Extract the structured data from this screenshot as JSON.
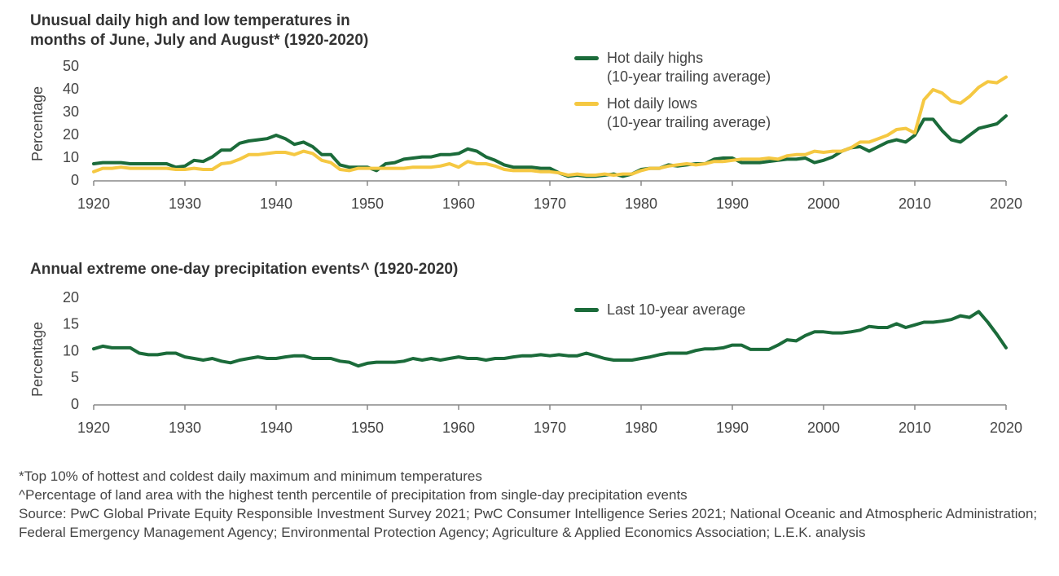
{
  "chart_data": [
    {
      "type": "line",
      "title": "Unusual daily high and low temperatures in\nmonths of June, July and August* (1920-2020)",
      "y_label": "Percentage",
      "x": [
        1920,
        1921,
        1922,
        1923,
        1924,
        1925,
        1926,
        1927,
        1928,
        1929,
        1930,
        1931,
        1932,
        1933,
        1934,
        1935,
        1936,
        1937,
        1938,
        1939,
        1940,
        1941,
        1942,
        1943,
        1944,
        1945,
        1946,
        1947,
        1948,
        1949,
        1950,
        1951,
        1952,
        1953,
        1954,
        1955,
        1956,
        1957,
        1958,
        1959,
        1960,
        1961,
        1962,
        1963,
        1964,
        1965,
        1966,
        1967,
        1968,
        1969,
        1970,
        1971,
        1972,
        1973,
        1974,
        1975,
        1976,
        1977,
        1978,
        1979,
        1980,
        1981,
        1982,
        1983,
        1984,
        1985,
        1986,
        1987,
        1988,
        1989,
        1990,
        1991,
        1992,
        1993,
        1994,
        1995,
        1996,
        1997,
        1998,
        1999,
        2000,
        2001,
        2002,
        2003,
        2004,
        2005,
        2006,
        2007,
        2008,
        2009,
        2010,
        2011,
        2012,
        2013,
        2014,
        2015,
        2016,
        2017,
        2018,
        2019,
        2020
      ],
      "series": [
        {
          "name": "Hot daily highs\n(10-year trailing average)",
          "color": "#1b6b3a",
          "values": [
            7.5,
            8,
            8,
            8,
            7.5,
            7.5,
            7.5,
            7.5,
            7.5,
            6,
            6.5,
            9,
            8.5,
            10.5,
            13.5,
            13.5,
            16.5,
            17.5,
            18,
            18.5,
            20,
            18.5,
            16,
            17,
            15,
            11.5,
            11.5,
            7,
            6,
            6,
            6,
            4.5,
            7.5,
            8,
            9.5,
            10,
            10.5,
            10.5,
            11.5,
            11.5,
            12,
            14,
            13,
            10.5,
            9,
            7,
            6,
            6,
            6,
            5.5,
            5.5,
            3.5,
            2,
            2.5,
            2,
            2,
            2.5,
            3,
            2,
            3,
            5,
            5.5,
            5.5,
            7,
            6.5,
            7,
            7.5,
            7.5,
            9.5,
            10,
            10,
            8,
            8,
            8,
            8.5,
            9,
            9.5,
            9.5,
            10,
            8,
            9,
            10.5,
            13,
            14.5,
            15,
            13,
            15,
            17,
            18,
            17,
            20,
            27,
            27,
            22,
            18,
            17,
            20,
            23,
            24,
            25,
            28.5
          ]
        },
        {
          "name": "Hot daily lows\n(10-year trailing average)",
          "color": "#f5c842",
          "values": [
            4,
            5.5,
            5.5,
            6,
            5.5,
            5.5,
            5.5,
            5.5,
            5.5,
            5,
            5,
            5.5,
            5,
            5,
            7.5,
            8,
            9.5,
            11.5,
            11.5,
            12,
            12.5,
            12.5,
            11.5,
            13,
            12,
            9,
            8,
            5,
            4.5,
            5.5,
            5.5,
            5.5,
            5.5,
            5.5,
            5.5,
            6,
            6,
            6,
            6.5,
            7.5,
            6,
            8.5,
            7.5,
            7.5,
            6.5,
            5,
            4.5,
            4.5,
            4.5,
            4,
            4,
            3.5,
            2.5,
            3,
            2.5,
            2.5,
            3,
            2.5,
            3,
            3,
            4.5,
            5.5,
            5.5,
            6.5,
            7,
            7.5,
            7,
            7.5,
            8.5,
            8.5,
            9,
            9.5,
            9.5,
            9.5,
            10,
            9.5,
            11,
            11.5,
            11.5,
            13,
            12.5,
            13,
            13,
            14.5,
            17,
            17,
            18.5,
            20,
            22.5,
            23,
            21,
            35.5,
            40,
            38.5,
            35,
            34,
            37,
            41,
            43.5,
            43,
            45.5
          ]
        }
      ],
      "ylim": [
        0,
        50
      ],
      "yticks": [
        0,
        10,
        20,
        30,
        40,
        50
      ],
      "xlim": [
        1920,
        2020
      ],
      "xticks": [
        1920,
        1930,
        1940,
        1950,
        1960,
        1970,
        1980,
        1990,
        2000,
        2010,
        2020
      ]
    },
    {
      "type": "line",
      "title": "Annual extreme one-day precipitation events^ (1920-2020)",
      "y_label": "Percentage",
      "x": [
        1920,
        1921,
        1922,
        1923,
        1924,
        1925,
        1926,
        1927,
        1928,
        1929,
        1930,
        1931,
        1932,
        1933,
        1934,
        1935,
        1936,
        1937,
        1938,
        1939,
        1940,
        1941,
        1942,
        1943,
        1944,
        1945,
        1946,
        1947,
        1948,
        1949,
        1950,
        1951,
        1952,
        1953,
        1954,
        1955,
        1956,
        1957,
        1958,
        1959,
        1960,
        1961,
        1962,
        1963,
        1964,
        1965,
        1966,
        1967,
        1968,
        1969,
        1970,
        1971,
        1972,
        1973,
        1974,
        1975,
        1976,
        1977,
        1978,
        1979,
        1980,
        1981,
        1982,
        1983,
        1984,
        1985,
        1986,
        1987,
        1988,
        1989,
        1990,
        1991,
        1992,
        1993,
        1994,
        1995,
        1996,
        1997,
        1998,
        1999,
        2000,
        2001,
        2002,
        2003,
        2004,
        2005,
        2006,
        2007,
        2008,
        2009,
        2010,
        2011,
        2012,
        2013,
        2014,
        2015,
        2016,
        2017,
        2018,
        2019,
        2020
      ],
      "series": [
        {
          "name": "Last 10-year average",
          "color": "#1b6b3a",
          "values": [
            10.5,
            11,
            10.7,
            10.7,
            10.7,
            9.7,
            9.4,
            9.4,
            9.7,
            9.7,
            9,
            8.7,
            8.4,
            8.7,
            8.2,
            7.9,
            8.4,
            8.7,
            9,
            8.7,
            8.7,
            9,
            9.2,
            9.2,
            8.7,
            8.7,
            8.7,
            8.2,
            8,
            7.3,
            7.8,
            8,
            8,
            8,
            8.2,
            8.7,
            8.4,
            8.7,
            8.4,
            8.7,
            9,
            8.7,
            8.7,
            8.4,
            8.7,
            8.7,
            9,
            9.2,
            9.2,
            9.4,
            9.2,
            9.4,
            9.2,
            9.2,
            9.7,
            9.2,
            8.7,
            8.4,
            8.4,
            8.4,
            8.7,
            9,
            9.4,
            9.7,
            9.7,
            9.7,
            10.2,
            10.5,
            10.5,
            10.7,
            11.2,
            11.2,
            10.4,
            10.4,
            10.4,
            11.2,
            12.2,
            12,
            13,
            13.7,
            13.7,
            13.5,
            13.5,
            13.7,
            14,
            14.7,
            14.5,
            14.5,
            15.2,
            14.5,
            15,
            15.5,
            15.5,
            15.7,
            16,
            16.7,
            16.4,
            17.5,
            15.5,
            13.2,
            10.7
          ]
        }
      ],
      "ylim": [
        0,
        20
      ],
      "yticks": [
        0,
        5,
        10,
        15,
        20
      ],
      "xlim": [
        1920,
        2020
      ],
      "xticks": [
        1920,
        1930,
        1940,
        1950,
        1960,
        1970,
        1980,
        1990,
        2000,
        2010,
        2020
      ]
    }
  ],
  "footnotes": [
    "*Top 10% of hottest and coldest daily maximum and minimum temperatures",
    "^Percentage of land area with the highest tenth percentile of precipitation from single-day precipitation events",
    "Source: PwC Global Private Equity Responsible Investment Survey 2021; PwC Consumer Intelligence Series 2021; National Oceanic and Atmospheric Administration; Federal Emergency Management Agency; Environmental Protection Agency; Agriculture & Applied Economics Association; L.E.K. analysis"
  ]
}
